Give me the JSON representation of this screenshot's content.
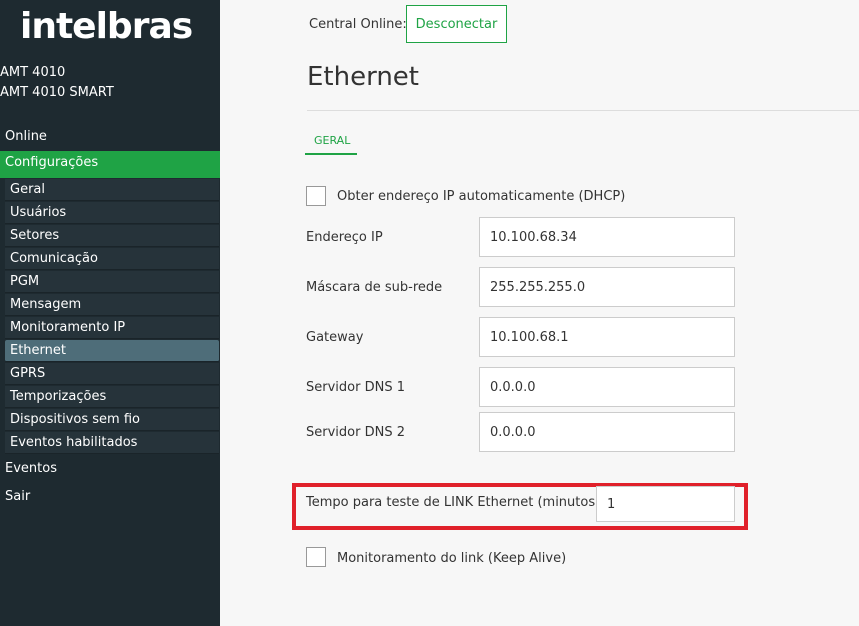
{
  "sidebar": {
    "logo": "intelbras",
    "models": [
      "AMT 4010",
      "AMT 4010 SMART"
    ],
    "menu": [
      "Online",
      "Configurações"
    ],
    "submenu": [
      "Geral",
      "Usuários",
      "Setores",
      "Comunicação",
      "PGM",
      "Mensagem",
      "Monitoramento IP",
      "Ethernet",
      "GPRS",
      "Temporizações",
      "Dispositivos sem fio",
      "Eventos habilitados"
    ],
    "menu_after": [
      "Eventos",
      "Sair"
    ]
  },
  "header": {
    "status_label": "Central Online:",
    "button": "Desconectar"
  },
  "page": {
    "title": "Ethernet",
    "tab": "GERAL",
    "dhcp_label": "Obter endereço IP automaticamente (DHCP)",
    "fields": [
      {
        "label": "Endereço IP",
        "value": "10.100.68.34"
      },
      {
        "label": "Máscara de sub-rede",
        "value": "255.255.255.0"
      },
      {
        "label": "Gateway",
        "value": "10.100.68.1"
      },
      {
        "label": "Servidor DNS 1",
        "value": "0.0.0.0"
      },
      {
        "label": "Servidor DNS 2",
        "value": "0.0.0.0"
      }
    ],
    "link_test": {
      "label": "Tempo para teste de LINK Ethernet (minutos)",
      "value": "1"
    },
    "keepalive_label": "Monitoramento do link (Keep Alive)"
  }
}
